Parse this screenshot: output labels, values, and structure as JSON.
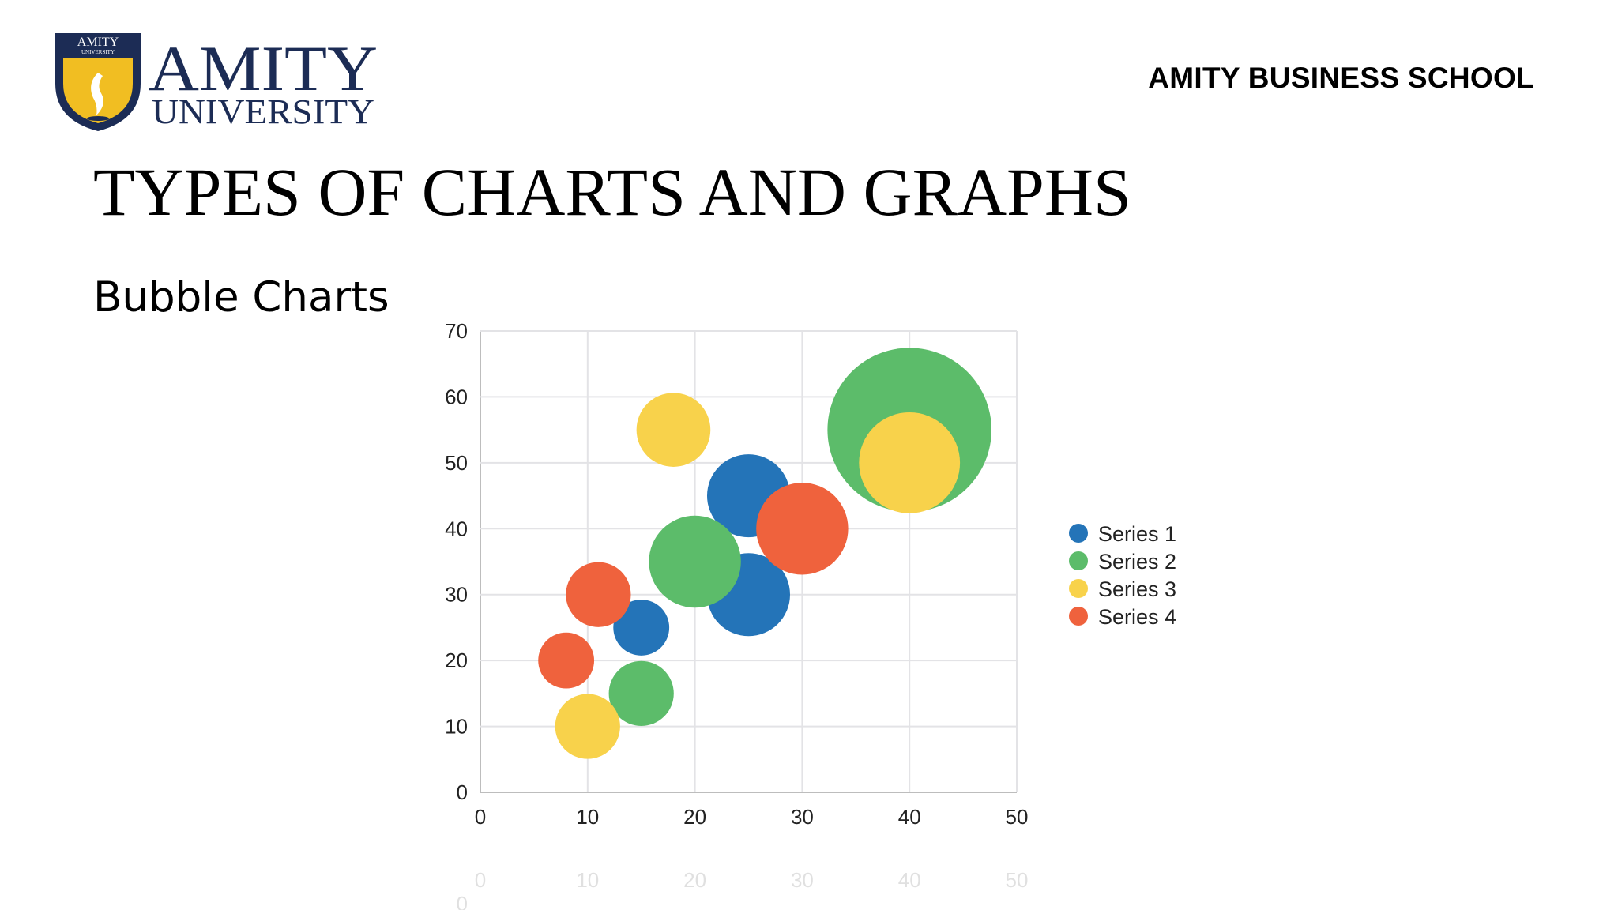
{
  "header": {
    "logo_top_text": "AMITY",
    "logo_top_subtext": "UNIVERSITY",
    "logo_name": "AMITY",
    "logo_subname": "UNIVERSITY",
    "school": "AMITY BUSINESS SCHOOL"
  },
  "slide": {
    "title": "TYPES OF CHARTS AND GRAPHS",
    "subtitle": "Bubble Charts"
  },
  "colors": {
    "logo_navy": "#1c2c55",
    "logo_gold": "#f1be22"
  },
  "chart_data": {
    "type": "scatter",
    "variant": "bubble",
    "title": "",
    "xlabel": "",
    "ylabel": "",
    "xlim": [
      0,
      50
    ],
    "ylim": [
      0,
      70
    ],
    "xticks": [
      0,
      10,
      20,
      30,
      40,
      50
    ],
    "yticks": [
      0,
      10,
      20,
      30,
      40,
      50,
      60,
      70
    ],
    "grid": true,
    "legend_position": "right",
    "series": [
      {
        "name": "Series 1",
        "color": "#2474b8",
        "points": [
          {
            "x": 15,
            "y": 25,
            "size": 2
          },
          {
            "x": 25,
            "y": 45,
            "size": 5
          },
          {
            "x": 25,
            "y": 30,
            "size": 5
          }
        ]
      },
      {
        "name": "Series 2",
        "color": "#5cbc6a",
        "points": [
          {
            "x": 15,
            "y": 15,
            "size": 3
          },
          {
            "x": 20,
            "y": 35,
            "size": 6
          },
          {
            "x": 40,
            "y": 55,
            "size": 14
          }
        ]
      },
      {
        "name": "Series 3",
        "color": "#f8d24b",
        "points": [
          {
            "x": 10,
            "y": 10,
            "size": 3
          },
          {
            "x": 18,
            "y": 55,
            "size": 4
          },
          {
            "x": 40,
            "y": 50,
            "size": 7
          }
        ]
      },
      {
        "name": "Series 4",
        "color": "#ef623d",
        "points": [
          {
            "x": 8,
            "y": 20,
            "size": 2
          },
          {
            "x": 11,
            "y": 30,
            "size": 3
          },
          {
            "x": 30,
            "y": 40,
            "size": 6
          }
        ]
      }
    ]
  }
}
